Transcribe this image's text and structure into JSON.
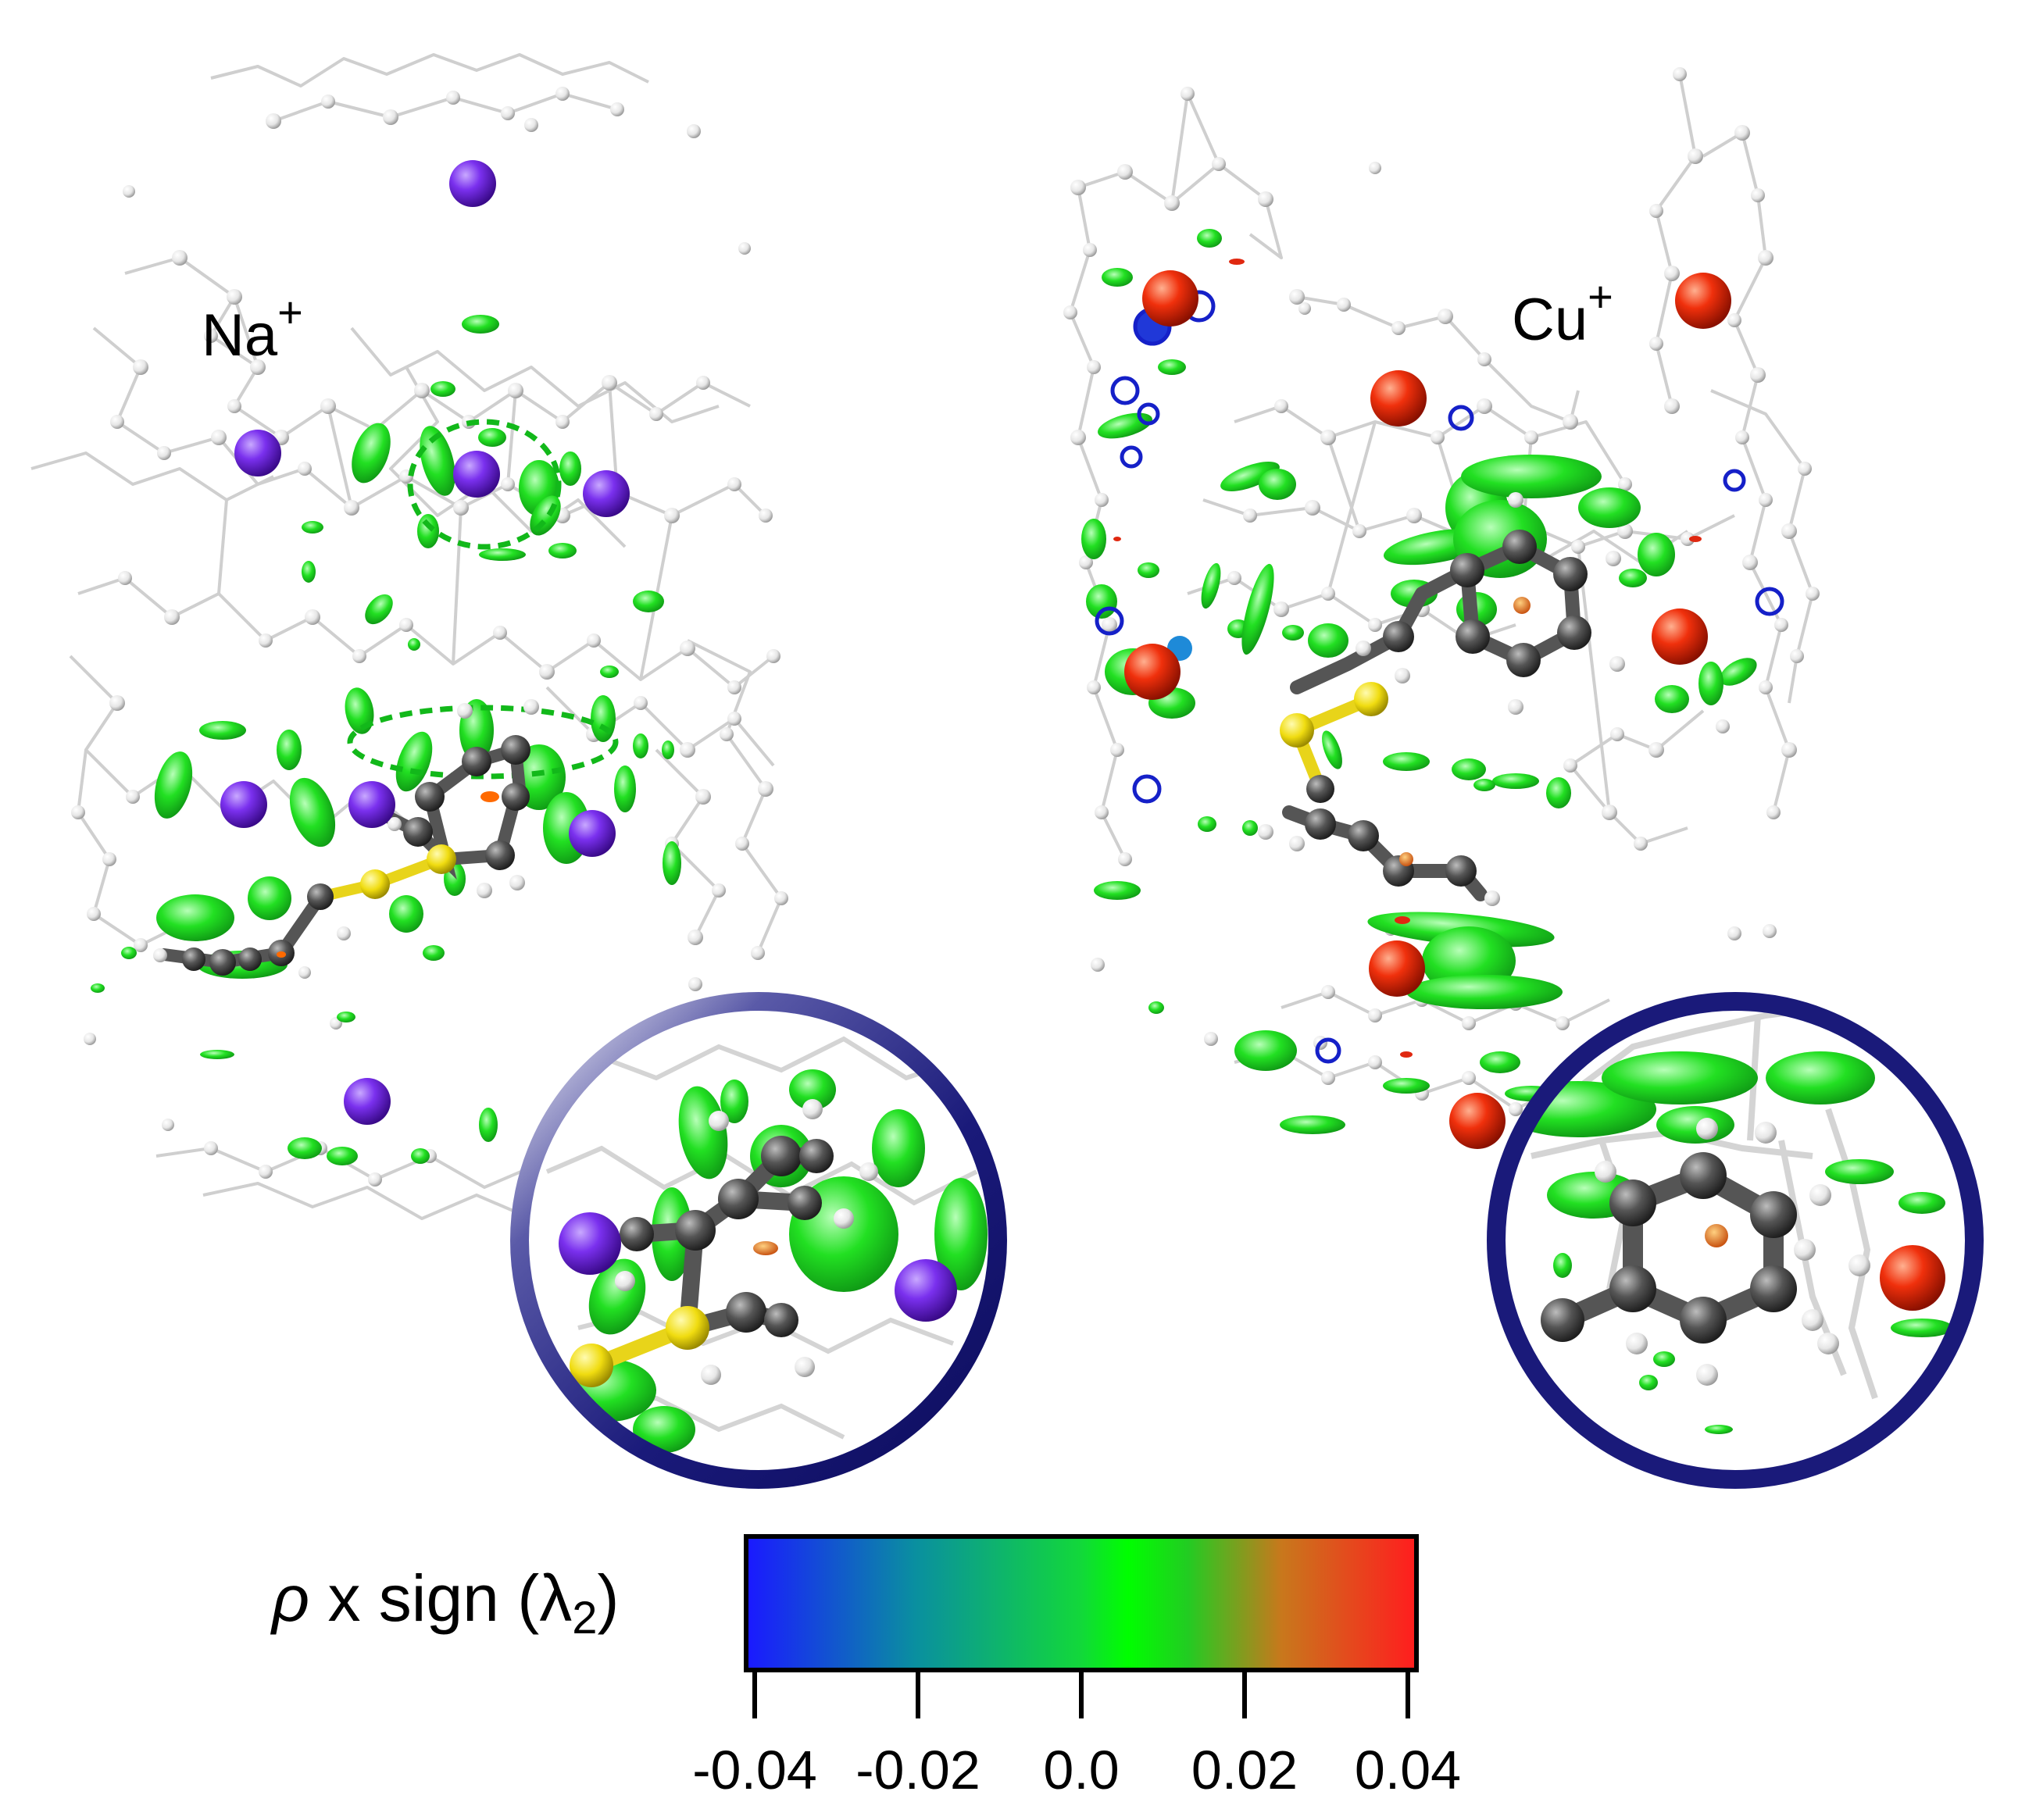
{
  "panels": [
    {
      "ion": "Na",
      "charge": "+"
    },
    {
      "ion": "Cu",
      "charge": "+"
    }
  ],
  "colorbar": {
    "title_rho": "ρ",
    "title_rest": " x sign (λ",
    "title_sub": "2",
    "title_close": ")",
    "ticks": [
      "-0.04",
      "-0.02",
      "0.0",
      "0.02",
      "0.04"
    ],
    "range": [
      -0.04,
      0.04
    ],
    "gradient_stops": [
      {
        "value": -0.04,
        "color": "#1a1aff"
      },
      {
        "value": -0.02,
        "color": "#0a8fa0"
      },
      {
        "value": 0.0,
        "color": "#12d83a"
      },
      {
        "value": 0.006,
        "color": "#00ff00"
      },
      {
        "value": 0.014,
        "color": "#22cc22"
      },
      {
        "value": 0.025,
        "color": "#c8781c"
      },
      {
        "value": 0.04,
        "color": "#ff1e1e"
      }
    ]
  },
  "colors": {
    "na_ion": "#6a1fd8",
    "cu_ion": "#e8220c",
    "carbon": "#4a4a4a",
    "sulfur": "#f2e21a",
    "framework": "#dedede",
    "isosurface": "#22dd22",
    "inset_ring": "#1a1a7a"
  }
}
